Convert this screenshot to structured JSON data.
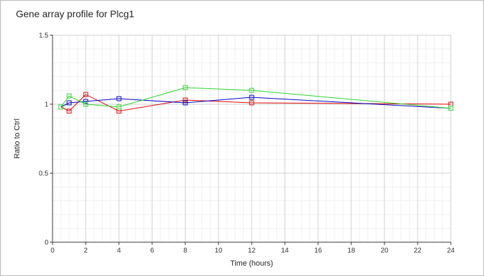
{
  "chart_data": {
    "type": "line",
    "title": "Gene array profile for Plcg1",
    "xlabel": "Time (hours)",
    "ylabel": "Ratio to Ctrl",
    "xlim": [
      0,
      24
    ],
    "ylim": [
      0,
      1.5
    ],
    "x_ticks": [
      "0",
      "2",
      "4",
      "6",
      "8",
      "10",
      "12",
      "14",
      "16",
      "18",
      "20",
      "22",
      "24"
    ],
    "y_ticks": [
      "0",
      "0.5",
      "1",
      "1.5"
    ],
    "grid": true,
    "legend": "none",
    "series": [
      {
        "color": "#e00000",
        "x": [
          0.5,
          1,
          2,
          4,
          8,
          12,
          24
        ],
        "values": [
          0.98,
          0.95,
          1.07,
          0.95,
          1.03,
          1.01,
          1.0
        ]
      },
      {
        "color": "#0000c0",
        "x": [
          0.5,
          1,
          2,
          4,
          8,
          12,
          24
        ],
        "values": [
          0.98,
          1.01,
          1.02,
          1.04,
          1.01,
          1.05,
          0.97
        ]
      },
      {
        "color": "#2ad62a",
        "x": [
          0.5,
          1,
          2,
          4,
          8,
          12,
          24
        ],
        "values": [
          0.98,
          1.06,
          1.0,
          0.98,
          1.12,
          1.1,
          0.97
        ]
      }
    ]
  }
}
